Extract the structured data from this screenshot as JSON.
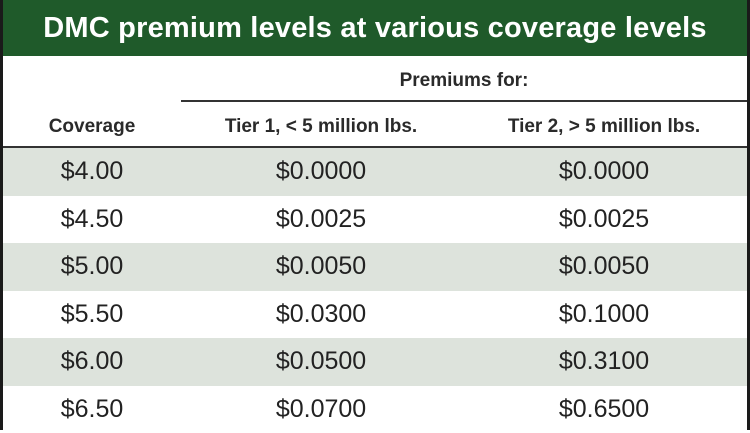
{
  "table": {
    "title": "DMC premium levels at various coverage levels",
    "group_header": "Premiums for:",
    "columns": [
      "Coverage",
      "Tier 1, < 5 million lbs.",
      "Tier 2, > 5 million lbs."
    ],
    "rows": [
      [
        "$4.00",
        "$0.0000",
        "$0.0000"
      ],
      [
        "$4.50",
        "$0.0025",
        "$0.0025"
      ],
      [
        "$5.00",
        "$0.0050",
        "$0.0050"
      ],
      [
        "$5.50",
        "$0.0300",
        "$0.1000"
      ],
      [
        "$6.00",
        "$0.0500",
        "$0.3100"
      ],
      [
        "$6.50",
        "$0.0700",
        "$0.6500"
      ]
    ]
  },
  "colors": {
    "title_background": "#1f5a2a",
    "title_text": "#ffffff",
    "shaded_row": "#dde3dc",
    "plain_row": "#ffffff"
  }
}
